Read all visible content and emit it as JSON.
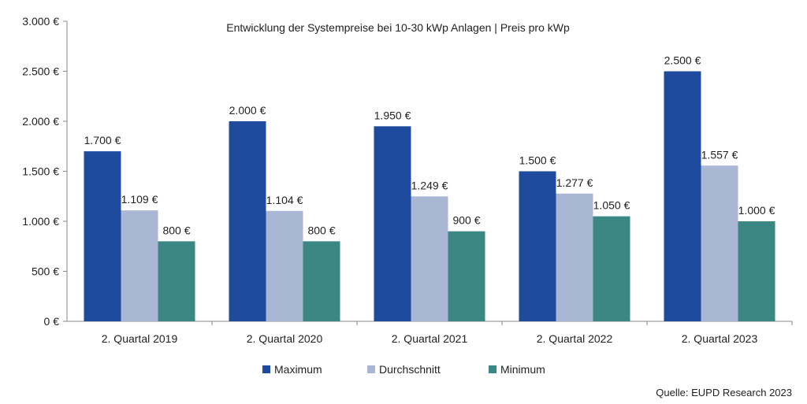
{
  "chart_data": {
    "type": "bar",
    "title": "Entwicklung der Systempreise bei 10-30 kWp Anlagen | Preis pro kWp",
    "categories": [
      "2. Quartal 2019",
      "2. Quartal 2020",
      "2. Quartal 2021",
      "2. Quartal 2022",
      "2. Quartal 2023"
    ],
    "series": [
      {
        "name": "Maximum",
        "color": "#1f4b9e",
        "values": [
          1700,
          2000,
          1950,
          1500,
          2500
        ],
        "labels": [
          "1.700 €",
          "2.000 €",
          "1.950 €",
          "1.500 €",
          "2.500 €"
        ]
      },
      {
        "name": "Durchschnitt",
        "color": "#a9b6d4",
        "values": [
          1109,
          1104,
          1249,
          1277,
          1557
        ],
        "labels": [
          "1.109 €",
          "1.104 €",
          "1.249 €",
          "1.277 €",
          "1.557 €"
        ]
      },
      {
        "name": "Minimum",
        "color": "#3a8784",
        "values": [
          800,
          800,
          900,
          1050,
          1000
        ],
        "labels": [
          "800 €",
          "800 €",
          "900 €",
          "1.050 €",
          "1.000 €"
        ]
      }
    ],
    "ylim": [
      0,
      3000
    ],
    "yticks": [
      0,
      500,
      1000,
      1500,
      2000,
      2500,
      3000
    ],
    "ytick_labels": [
      "0 €",
      "500 €",
      "1.000 €",
      "1.500 €",
      "2.000 €",
      "2.500 €",
      "3.000 €"
    ],
    "grid": false,
    "legend_position": "bottom-center",
    "source": "Quelle: EUPD Research 2023"
  }
}
